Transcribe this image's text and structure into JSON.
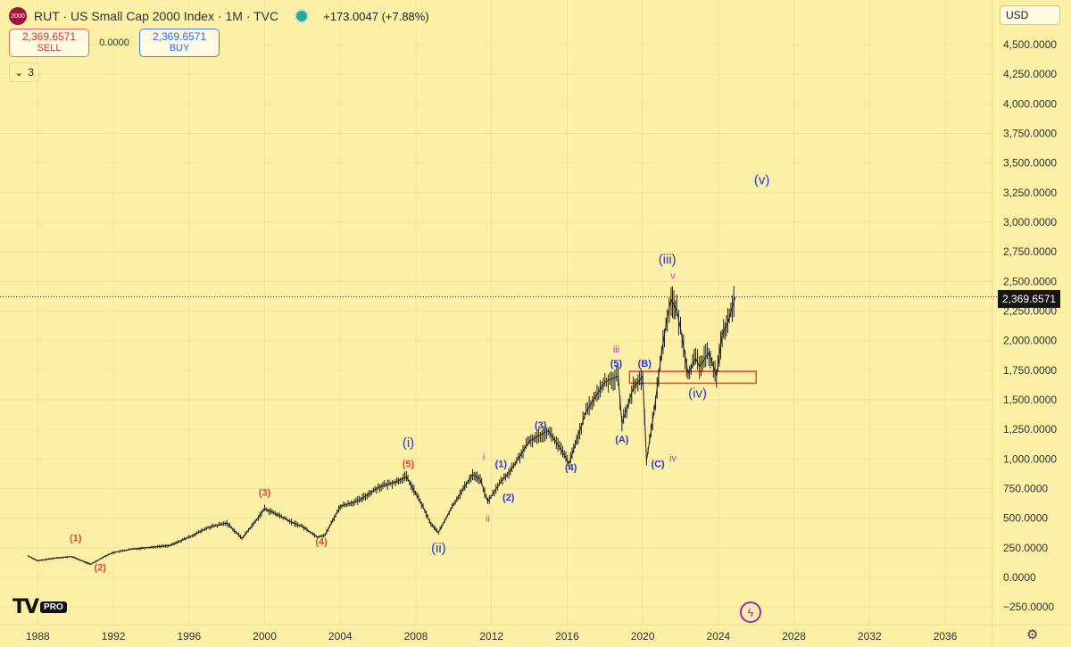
{
  "header": {
    "symbol_badge": "2000",
    "title": "RUT · US Small Cap 2000 Index · 1M · TVC",
    "change": "+173.0047 (+7.88%)",
    "status_color": "#22ab94"
  },
  "trade": {
    "sell_price": "2,369.6571",
    "sell_label": "SELL",
    "spread": "0.0000",
    "buy_price": "2,369.6571",
    "buy_label": "BUY"
  },
  "indicators": {
    "count": "3",
    "icon": "chevron-down-icon"
  },
  "currency": {
    "label": "USD"
  },
  "price_tag": "2,369.6571",
  "branding": {
    "logo_text": "TV",
    "badge": "PRO"
  },
  "chart_data": {
    "type": "line",
    "xlim": [
      1986,
      2038.5
    ],
    "ylim": [
      -300,
      4700
    ],
    "y_ticks": [
      -250,
      0,
      250,
      500,
      750,
      1000,
      1250,
      1500,
      1750,
      2000,
      2250,
      2500,
      2750,
      3000,
      3250,
      3500,
      3750,
      4000,
      4250,
      4500
    ],
    "y_tick_labels": [
      "−250.0000",
      "0.0000",
      "250.0000",
      "500.0000",
      "750.0000",
      "1,000.0000",
      "1,250.0000",
      "1,500.0000",
      "1,750.0000",
      "2,000.0000",
      "2,250.0000",
      "2,500.0000",
      "2,750.0000",
      "3,000.0000",
      "3,250.0000",
      "3,500.0000",
      "3,750.0000",
      "4,000.0000",
      "4,250.0000",
      "4,500.0000"
    ],
    "x_ticks": [
      1988,
      1992,
      1996,
      2000,
      2004,
      2008,
      2012,
      2016,
      2020,
      2024,
      2028,
      2032,
      2036
    ],
    "x_tick_labels": [
      "1988",
      "1992",
      "1996",
      "2000",
      "2004",
      "2008",
      "2012",
      "2016",
      "2020",
      "2024",
      "2028",
      "2032",
      "2036"
    ],
    "last_price": 2369.6571,
    "series": [
      {
        "color": "#222222",
        "x": [
          1987.5,
          1988,
          1989,
          1989.8,
          1990.8,
          1991.5,
          1992,
          1993,
          1994,
          1995,
          1996,
          1997,
          1998,
          1998.8,
          1999.5,
          2000,
          2000.8,
          2001.5,
          2002,
          2002.8,
          2003.2,
          2004,
          2005,
          2006,
          2007,
          2007.5,
          2008.3,
          2008.8,
          2009.2,
          2010,
          2011,
          2011.4,
          2011.8,
          2012.5,
          2013,
          2014,
          2015,
          2015.6,
          2016.1,
          2017,
          2018,
          2018.7,
          2018.9,
          2019.5,
          2020,
          2020.2,
          2020.6,
          2021,
          2021.3,
          2021.5,
          2021.8,
          2022,
          2022.4,
          2022.8,
          2023,
          2023.5,
          2023.9,
          2024.2,
          2024.5,
          2024.9
        ],
        "y": [
          180,
          140,
          165,
          175,
          110,
          175,
          210,
          240,
          255,
          270,
          340,
          420,
          460,
          330,
          470,
          580,
          520,
          460,
          430,
          340,
          360,
          600,
          650,
          760,
          810,
          850,
          620,
          450,
          380,
          620,
          870,
          830,
          640,
          810,
          900,
          1150,
          1240,
          1100,
          960,
          1400,
          1650,
          1700,
          1300,
          1600,
          1700,
          990,
          1400,
          1900,
          2200,
          2350,
          2250,
          2100,
          1720,
          1850,
          1780,
          1900,
          1700,
          2050,
          2150,
          2369.6571
        ]
      }
    ],
    "annotations": [
      {
        "text": "(1)",
        "x": 1990.0,
        "y": 305,
        "color": "#d7473b"
      },
      {
        "text": "(2)",
        "x": 1991.3,
        "y": 55,
        "color": "#d7473b"
      },
      {
        "text": "(3)",
        "x": 2000.0,
        "y": 690,
        "color": "#d7473b"
      },
      {
        "text": "(4)",
        "x": 2003.0,
        "y": 275,
        "color": "#d7473b"
      },
      {
        "text": "(5)",
        "x": 2007.6,
        "y": 930,
        "color": "#d7473b"
      },
      {
        "text": "(i)",
        "x": 2007.6,
        "y": 1100,
        "color": "#2a36d6"
      },
      {
        "text": "(ii)",
        "x": 2009.2,
        "y": 210,
        "color": "#2a36d6"
      },
      {
        "text": "i",
        "x": 2011.6,
        "y": 990,
        "color": "#c23bcf"
      },
      {
        "text": "ii",
        "x": 2011.8,
        "y": 470,
        "color": "#c23bcf"
      },
      {
        "text": "(1)",
        "x": 2012.5,
        "y": 930,
        "color": "#2a36d6"
      },
      {
        "text": "(2)",
        "x": 2012.9,
        "y": 650,
        "color": "#2a36d6"
      },
      {
        "text": "(3)",
        "x": 2014.6,
        "y": 1260,
        "color": "#2a36d6"
      },
      {
        "text": "(4)",
        "x": 2016.2,
        "y": 900,
        "color": "#2a36d6"
      },
      {
        "text": "iii",
        "x": 2018.6,
        "y": 1900,
        "color": "#c23bcf"
      },
      {
        "text": "(5)",
        "x": 2018.6,
        "y": 1780,
        "color": "#2a36d6"
      },
      {
        "text": "(B)",
        "x": 2020.1,
        "y": 1780,
        "color": "#2a36d6"
      },
      {
        "text": "(A)",
        "x": 2018.9,
        "y": 1140,
        "color": "#2a36d6"
      },
      {
        "text": "(C)",
        "x": 2020.8,
        "y": 930,
        "color": "#2a36d6"
      },
      {
        "text": "iv",
        "x": 2021.6,
        "y": 980,
        "color": "#c23bcf"
      },
      {
        "text": "(iii)",
        "x": 2021.3,
        "y": 2650,
        "color": "#2a36d6"
      },
      {
        "text": "v",
        "x": 2021.6,
        "y": 2520,
        "color": "#c23bcf"
      },
      {
        "text": "(iv)",
        "x": 2022.9,
        "y": 1520,
        "color": "#2a36d6"
      },
      {
        "text": "(v)",
        "x": 2026.3,
        "y": 3320,
        "color": "#2a36d6"
      }
    ],
    "zone": {
      "x_from": 2019.3,
      "x_to": 2026.0,
      "y_from": 1640,
      "y_to": 1740,
      "color": "#e0463a"
    }
  }
}
